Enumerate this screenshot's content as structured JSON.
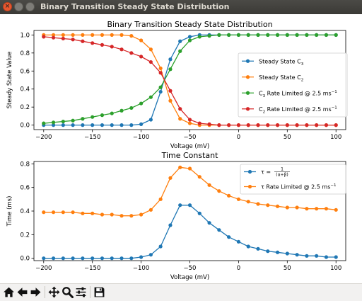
{
  "window": {
    "title": "Binary Transition Steady State Distribution"
  },
  "toolbar": {
    "icons": [
      "home-icon",
      "back-icon",
      "forward-icon",
      "pan-icon",
      "zoom-icon",
      "subplots-icon",
      "save-icon"
    ]
  },
  "colors": {
    "c3": "#1f77b4",
    "c2": "#ff7f0e",
    "c3_rl": "#2ca02c",
    "c2_rl": "#d62728"
  },
  "chart_data": [
    {
      "type": "line",
      "title": "Binary Transition Steady State Distribution",
      "xlabel": "Voltage (mV)",
      "ylabel": "Steady State Value",
      "xlim": [
        -210,
        110
      ],
      "ylim": [
        -0.05,
        1.05
      ],
      "xticks": [
        -200,
        -150,
        -100,
        -50,
        0,
        50,
        100
      ],
      "xtick_labels": [
        "−200",
        "−150",
        "−100",
        "−50",
        "0",
        "50",
        "100"
      ],
      "yticks": [
        0.0,
        0.2,
        0.4,
        0.6,
        0.8,
        1.0
      ],
      "ytick_labels": [
        "0.0",
        "0.2",
        "0.4",
        "0.6",
        "0.8",
        "1.0"
      ],
      "legend_position": "center-right",
      "grid": false,
      "x": [
        -200,
        -190,
        -180,
        -170,
        -160,
        -150,
        -140,
        -130,
        -120,
        -110,
        -100,
        -90,
        -80,
        -70,
        -60,
        -50,
        -40,
        -30,
        -20,
        -10,
        0,
        10,
        20,
        30,
        40,
        50,
        60,
        70,
        80,
        90,
        100
      ],
      "series": [
        {
          "name": "Steady State C",
          "name_sub": "3",
          "color_key": "c3",
          "values": [
            0.0,
            0.0,
            0.0,
            0.0,
            0.0,
            0.0,
            0.0,
            0.0,
            0.0,
            0.0,
            0.01,
            0.06,
            0.37,
            0.73,
            0.93,
            0.98,
            1.0,
            1.0,
            1.0,
            1.0,
            1.0,
            1.0,
            1.0,
            1.0,
            1.0,
            1.0,
            1.0,
            1.0,
            1.0,
            1.0,
            1.0
          ]
        },
        {
          "name": "Steady State C",
          "name_sub": "2",
          "color_key": "c2",
          "values": [
            1.0,
            1.0,
            1.0,
            1.0,
            1.0,
            1.0,
            1.0,
            1.0,
            1.0,
            0.99,
            0.94,
            0.84,
            0.63,
            0.27,
            0.07,
            0.02,
            0.0,
            0.0,
            0.0,
            0.0,
            0.0,
            0.0,
            0.0,
            0.0,
            0.0,
            0.0,
            0.0,
            0.0,
            0.0,
            0.0,
            0.0
          ]
        },
        {
          "name": "C",
          "name_sub": "3",
          "name_suffix": " Rate Limited @ 2.5 ms",
          "name_sup": "−1",
          "color_key": "c3_rl",
          "values": [
            0.02,
            0.03,
            0.04,
            0.05,
            0.07,
            0.09,
            0.11,
            0.13,
            0.16,
            0.19,
            0.24,
            0.31,
            0.42,
            0.62,
            0.82,
            0.94,
            0.98,
            0.99,
            1.0,
            1.0,
            1.0,
            1.0,
            1.0,
            1.0,
            1.0,
            1.0,
            1.0,
            1.0,
            1.0,
            1.0,
            1.0
          ]
        },
        {
          "name": "C",
          "name_sub": "2",
          "name_suffix": " Rate Limited @ 2.5 ms",
          "name_sup": "−1",
          "color_key": "c2_rl",
          "values": [
            0.98,
            0.97,
            0.96,
            0.95,
            0.93,
            0.91,
            0.89,
            0.87,
            0.84,
            0.8,
            0.76,
            0.7,
            0.58,
            0.38,
            0.18,
            0.06,
            0.02,
            0.01,
            0.0,
            0.0,
            0.0,
            0.0,
            0.0,
            0.0,
            0.0,
            0.0,
            0.0,
            0.0,
            0.0,
            0.0,
            0.0
          ]
        }
      ]
    },
    {
      "type": "line",
      "title": "Time Constant",
      "xlabel": "Voltage (mV)",
      "ylabel": "Time (ms)",
      "xlim": [
        -210,
        110
      ],
      "ylim": [
        -0.02,
        0.82
      ],
      "xticks": [
        -200,
        -150,
        -100,
        -50,
        0,
        50,
        100
      ],
      "xtick_labels": [
        "−200",
        "−150",
        "−100",
        "−50",
        "0",
        "50",
        "100"
      ],
      "yticks": [
        0.0,
        0.2,
        0.4,
        0.6,
        0.8
      ],
      "ytick_labels": [
        "0.0",
        "0.2",
        "0.4",
        "0.6",
        "0.8"
      ],
      "legend_position": "top-right",
      "grid": false,
      "x": [
        -200,
        -190,
        -180,
        -170,
        -160,
        -150,
        -140,
        -130,
        -120,
        -110,
        -100,
        -90,
        -80,
        -70,
        -60,
        -50,
        -40,
        -30,
        -20,
        -10,
        0,
        10,
        20,
        30,
        40,
        50,
        60,
        70,
        80,
        90,
        100
      ],
      "series": [
        {
          "name": "τ = ",
          "formula": "1/(α+β)",
          "color_key": "c3",
          "values": [
            0.0,
            0.0,
            0.0,
            0.0,
            0.0,
            0.0,
            0.0,
            0.0,
            0.0,
            0.0,
            0.01,
            0.03,
            0.1,
            0.28,
            0.45,
            0.45,
            0.38,
            0.3,
            0.24,
            0.18,
            0.14,
            0.1,
            0.08,
            0.06,
            0.05,
            0.04,
            0.03,
            0.02,
            0.02,
            0.01,
            0.01
          ]
        },
        {
          "name": "τ Rate Limited @ 2.5 ms",
          "name_sup": "−1",
          "color_key": "c2",
          "values": [
            0.39,
            0.39,
            0.39,
            0.39,
            0.38,
            0.38,
            0.37,
            0.37,
            0.36,
            0.36,
            0.37,
            0.41,
            0.5,
            0.68,
            0.77,
            0.76,
            0.69,
            0.62,
            0.57,
            0.53,
            0.5,
            0.48,
            0.46,
            0.45,
            0.44,
            0.43,
            0.43,
            0.42,
            0.42,
            0.42,
            0.41
          ]
        }
      ]
    }
  ]
}
